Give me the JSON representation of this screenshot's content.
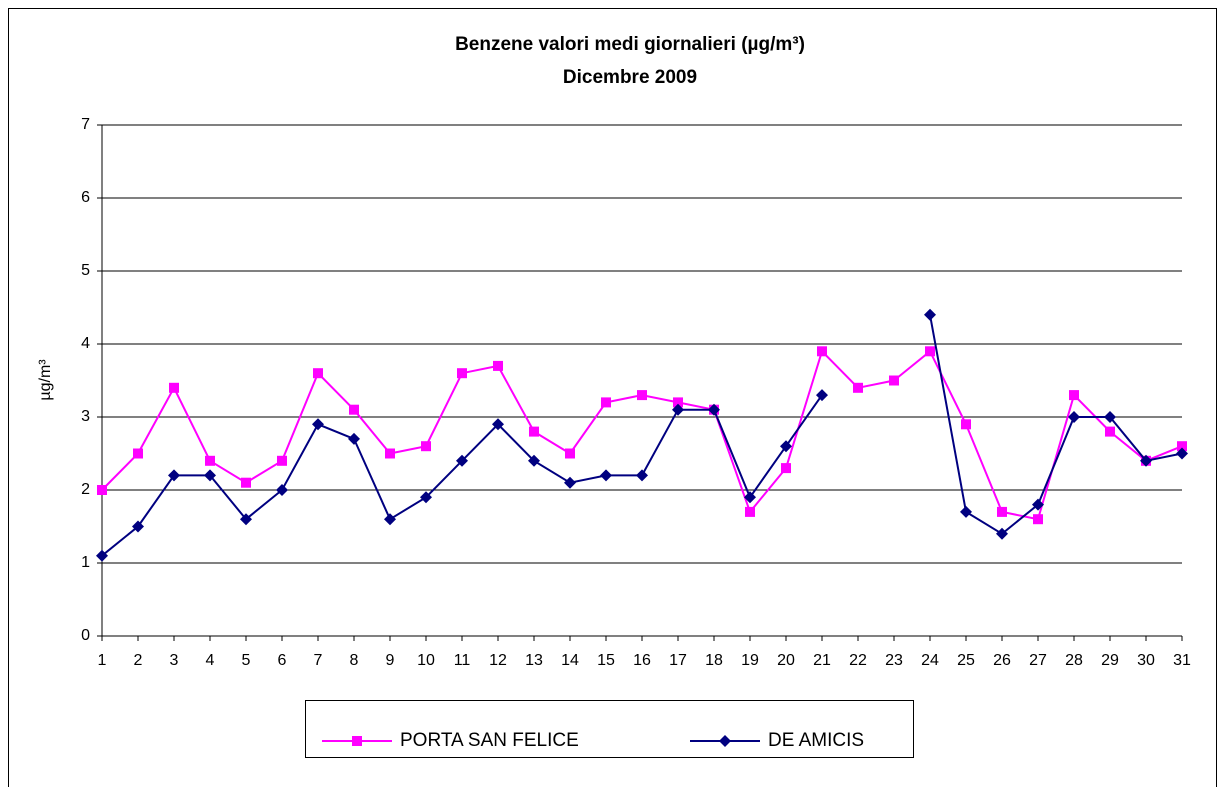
{
  "chart_data": {
    "type": "line",
    "title": "Benzene valori medi giornalieri (µg/m³)",
    "subtitle": "Dicembre 2009",
    "y_label": "µg/m³",
    "categories": [
      1,
      2,
      3,
      4,
      5,
      6,
      7,
      8,
      9,
      10,
      11,
      12,
      13,
      14,
      15,
      16,
      17,
      18,
      19,
      20,
      21,
      22,
      23,
      24,
      25,
      26,
      27,
      28,
      29,
      30,
      31
    ],
    "series": [
      {
        "name": "PORTA SAN FELICE",
        "color": "#ff00ff",
        "marker": "square",
        "values": [
          2.0,
          2.5,
          3.4,
          2.4,
          2.1,
          2.4,
          3.6,
          3.1,
          2.5,
          2.6,
          3.6,
          3.7,
          2.8,
          2.5,
          3.2,
          3.3,
          3.2,
          3.1,
          1.7,
          2.3,
          3.9,
          3.4,
          3.5,
          3.9,
          2.9,
          1.7,
          1.6,
          3.3,
          2.8,
          2.4,
          2.6
        ]
      },
      {
        "name": "DE AMICIS",
        "color": "#000080",
        "marker": "diamond",
        "values": [
          1.1,
          1.5,
          2.2,
          2.2,
          1.6,
          2.0,
          2.9,
          2.7,
          1.6,
          1.9,
          2.4,
          2.9,
          2.4,
          2.1,
          2.2,
          2.2,
          3.1,
          3.1,
          1.9,
          2.6,
          3.3,
          null,
          null,
          4.4,
          1.7,
          1.4,
          1.8,
          3.0,
          3.0,
          2.4,
          2.5
        ]
      }
    ],
    "ylim": [
      0,
      7
    ],
    "yticks": [
      0,
      1,
      2,
      3,
      4,
      5,
      6,
      7
    ],
    "grid": true,
    "legend": "bottom"
  }
}
